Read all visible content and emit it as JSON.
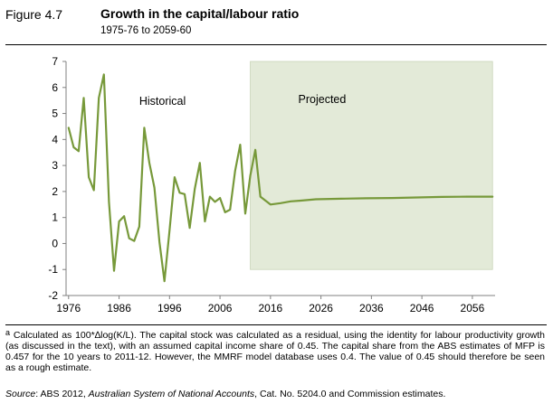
{
  "header": {
    "figure_label": "Figure 4.7",
    "title": "Growth in the capital/labour ratio",
    "subtitle": "1975-76 to 2059-60"
  },
  "colors": {
    "line": "#77993a",
    "projection_fill": "#e3ead8",
    "axis": "#808080"
  },
  "chart_data": {
    "type": "line",
    "title": "Growth in the capital/labour ratio",
    "xlabel": "",
    "ylabel": "",
    "xlim": [
      1975.5,
      2060.5
    ],
    "ylim": [
      -2,
      7
    ],
    "xticks": [
      1976,
      1986,
      1996,
      2006,
      2016,
      2026,
      2036,
      2046,
      2056
    ],
    "yticks": [
      -2,
      -1,
      0,
      1,
      2,
      3,
      4,
      5,
      6,
      7
    ],
    "grid": false,
    "projection_region": {
      "x_start": 2012,
      "x_end": 2060,
      "y_from": -1,
      "y_to": 7
    },
    "annotations": [
      "Historical",
      "Projected"
    ],
    "series": [
      {
        "name": "Capital/labour ratio growth",
        "x": [
          1976,
          1977,
          1978,
          1979,
          1980,
          1981,
          1982,
          1983,
          1984,
          1985,
          1986,
          1987,
          1988,
          1989,
          1990,
          1991,
          1992,
          1993,
          1994,
          1995,
          1996,
          1997,
          1998,
          1999,
          2000,
          2001,
          2002,
          2003,
          2004,
          2005,
          2006,
          2007,
          2008,
          2009,
          2010,
          2011,
          2012,
          2013,
          2014,
          2016,
          2018,
          2020,
          2022,
          2025,
          2030,
          2035,
          2040,
          2045,
          2050,
          2055,
          2060
        ],
        "values": [
          4.45,
          3.7,
          3.55,
          5.6,
          2.55,
          2.05,
          5.6,
          6.5,
          1.6,
          -1.05,
          0.85,
          1.05,
          0.2,
          0.1,
          0.65,
          4.45,
          3.1,
          2.15,
          0.05,
          -1.45,
          0.5,
          2.55,
          1.95,
          1.9,
          0.6,
          2.1,
          3.1,
          0.85,
          1.8,
          1.6,
          1.75,
          1.2,
          1.3,
          2.8,
          3.8,
          1.15,
          2.6,
          3.6,
          1.8,
          1.5,
          1.55,
          1.62,
          1.65,
          1.7,
          1.72,
          1.74,
          1.75,
          1.77,
          1.79,
          1.8,
          1.8
        ]
      }
    ]
  },
  "note": {
    "marker": "a",
    "text": "Calculated as 100*∆log(K/L). The capital stock was calculated as a residual, using the identity for labour productivity growth (as discussed in the text), with an assumed capital income share of 0.45. The capital share from the ABS estimates of MFP is 0.457 for the 10 years to 2011-12. However, the MMRF model database uses 0.4. The value of 0.45 should therefore be seen as a rough estimate."
  },
  "source": {
    "label": "Source",
    "prefix": ": ABS 2012, ",
    "publication": "Australian System of National Accounts",
    "suffix": ", Cat. No. 5204.0 and Commission estimates."
  }
}
